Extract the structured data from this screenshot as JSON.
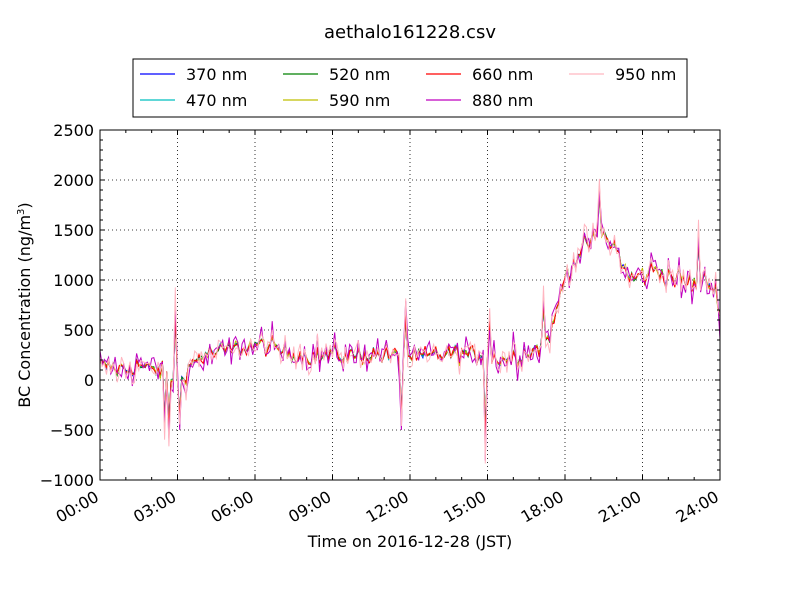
{
  "chart_data": {
    "type": "line",
    "title": "aethalo161228.csv",
    "xlabel": "Time on 2016-12-28 (JST)",
    "ylabel_main": "BC Concentration (ng/m",
    "ylabel_sup": "3",
    "ylabel_end": ")",
    "ylim": [
      -1000,
      2500
    ],
    "yticks": [
      -1000,
      -500,
      0,
      500,
      1000,
      1500,
      2000,
      2500
    ],
    "ytick_labels": [
      "−1000",
      "−500",
      "0",
      "500",
      "1000",
      "1500",
      "2000",
      "2500"
    ],
    "xlim": [
      "00:00",
      "24:00"
    ],
    "xticks": [
      "00:00",
      "03:00",
      "06:00",
      "09:00",
      "12:00",
      "15:00",
      "18:00",
      "21:00",
      "24:00"
    ],
    "grid": true,
    "legend_placement": "top, above plot, 4 columns",
    "series": [
      {
        "name": "370 nm",
        "color": "#0000ff"
      },
      {
        "name": "470 nm",
        "color": "#00bfbf"
      },
      {
        "name": "520 nm",
        "color": "#008000"
      },
      {
        "name": "590 nm",
        "color": "#bfbf00"
      },
      {
        "name": "660 nm",
        "color": "#ff0000"
      },
      {
        "name": "880 nm",
        "color": "#bf00bf"
      },
      {
        "name": "950 nm",
        "color": "#ffb6c1"
      }
    ],
    "x_hours": [
      0,
      0.5,
      1,
      1.5,
      2,
      2.5,
      3,
      3.5,
      4,
      4.5,
      5,
      5.5,
      6,
      6.5,
      7,
      7.5,
      8,
      8.5,
      9,
      9.5,
      10,
      10.5,
      11,
      11.5,
      12,
      12.5,
      13,
      13.5,
      14,
      14.5,
      15,
      15.5,
      16,
      16.5,
      17,
      17.5,
      18,
      18.5,
      19,
      19.5,
      20,
      20.5,
      21,
      21.5,
      22,
      22.5,
      23,
      23.5,
      24
    ],
    "trend": [
      150,
      120,
      100,
      150,
      100,
      90,
      -50,
      150,
      250,
      280,
      300,
      320,
      350,
      340,
      300,
      260,
      240,
      230,
      250,
      240,
      250,
      260,
      250,
      230,
      230,
      220,
      250,
      260,
      270,
      240,
      250,
      210,
      230,
      280,
      330,
      500,
      1050,
      1250,
      1400,
      1450,
      1300,
      1000,
      1050,
      1100,
      1050,
      1000,
      950,
      1000,
      800
    ]
  }
}
